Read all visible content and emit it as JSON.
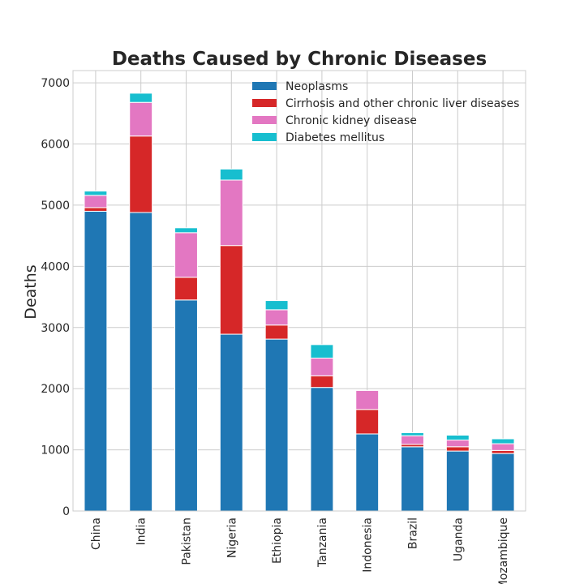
{
  "chart_data": {
    "type": "bar",
    "stacked": true,
    "title": "Deaths Caused by Chronic Diseases",
    "xlabel": "",
    "ylabel": "Deaths",
    "ylim": [
      0,
      7200
    ],
    "yticks": [
      0,
      1000,
      2000,
      3000,
      4000,
      5000,
      6000,
      7000
    ],
    "grid": true,
    "legend_position": "top-right",
    "categories": [
      "China",
      "India",
      "Pakistan",
      "Nigeria",
      "Ethiopia",
      "Tanzania",
      "Indonesia",
      "Brazil",
      "Uganda",
      "Mozambique"
    ],
    "series": [
      {
        "name": "Neoplasms",
        "color": "#1f77b4",
        "values": [
          4900,
          4880,
          3450,
          2890,
          2810,
          2020,
          1260,
          1050,
          980,
          940
        ]
      },
      {
        "name": "Cirrhosis and other chronic liver diseases",
        "color": "#d62728",
        "values": [
          60,
          1250,
          370,
          1450,
          230,
          190,
          400,
          40,
          70,
          50
        ]
      },
      {
        "name": "Chronic kidney disease",
        "color": "#e377c2",
        "values": [
          200,
          550,
          730,
          1070,
          250,
          290,
          310,
          140,
          110,
          110
        ]
      },
      {
        "name": "Diabetes mellitus",
        "color": "#17becf",
        "values": [
          70,
          150,
          80,
          180,
          150,
          220,
          0,
          50,
          80,
          80
        ]
      }
    ]
  }
}
